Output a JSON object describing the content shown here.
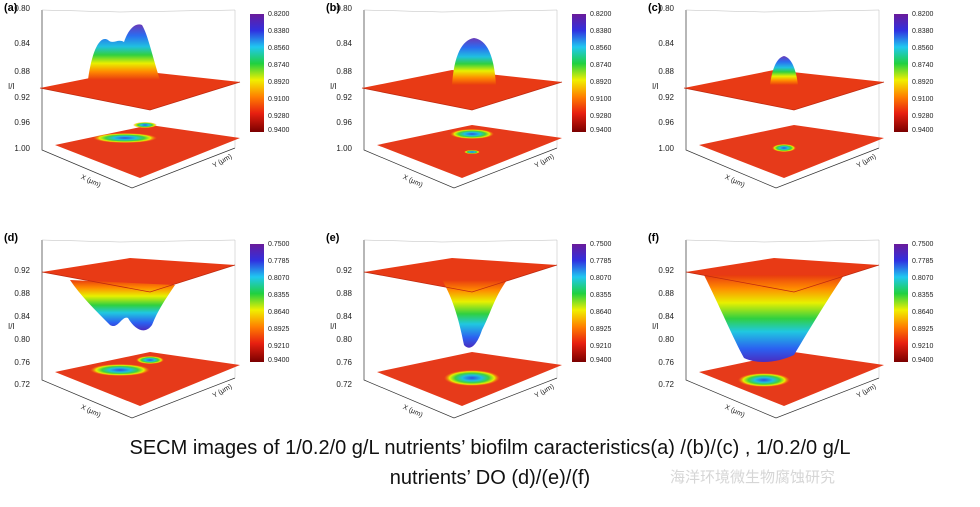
{
  "panels": [
    {
      "label": "(a)",
      "z_ticks": [
        "0.80",
        "0.84",
        "0.88",
        "0.92",
        "0.96",
        "1.00"
      ],
      "z_label": "I/I",
      "cbar": [
        "0.8200",
        "0.8380",
        "0.8560",
        "0.8740",
        "0.8920",
        "0.9100",
        "0.9280",
        "0.9400"
      ],
      "x_label": "X (μm)",
      "y_label": "Y (μm)"
    },
    {
      "label": "(b)",
      "z_ticks": [
        "0.80",
        "0.84",
        "0.88",
        "0.92",
        "0.96",
        "1.00"
      ],
      "z_label": "I/I",
      "cbar": [
        "0.8200",
        "0.8380",
        "0.8560",
        "0.8740",
        "0.8920",
        "0.9100",
        "0.9280",
        "0.9400"
      ],
      "x_label": "X (μm)",
      "y_label": "Y (μm)"
    },
    {
      "label": "(c)",
      "z_ticks": [
        "0.80",
        "0.84",
        "0.88",
        "0.92",
        "0.96",
        "1.00"
      ],
      "z_label": "I/I",
      "cbar": [
        "0.8200",
        "0.8380",
        "0.8560",
        "0.8740",
        "0.8920",
        "0.9100",
        "0.9280",
        "0.9400"
      ],
      "x_label": "X (μm)",
      "y_label": "Y (μm)"
    },
    {
      "label": "(d)",
      "z_ticks": [
        "0.92",
        "0.88",
        "0.84",
        "0.80",
        "0.76",
        "0.72"
      ],
      "z_label": "I/I",
      "cbar": [
        "0.7500",
        "0.7785",
        "0.8070",
        "0.8355",
        "0.8640",
        "0.8925",
        "0.9210",
        "0.9400"
      ],
      "x_label": "X (μm)",
      "y_label": "Y (μm)"
    },
    {
      "label": "(e)",
      "z_ticks": [
        "0.92",
        "0.88",
        "0.84",
        "0.80",
        "0.76",
        "0.72"
      ],
      "z_label": "I/I",
      "cbar": [
        "0.7500",
        "0.7785",
        "0.8070",
        "0.8355",
        "0.8640",
        "0.8925",
        "0.9210",
        "0.9400"
      ],
      "x_label": "X (μm)",
      "y_label": "Y (μm)"
    },
    {
      "label": "(f)",
      "z_ticks": [
        "0.92",
        "0.88",
        "0.84",
        "0.80",
        "0.76",
        "0.72"
      ],
      "z_label": "I/I",
      "cbar": [
        "0.7500",
        "0.7785",
        "0.8070",
        "0.8355",
        "0.8640",
        "0.8925",
        "0.9210",
        "0.9400"
      ],
      "x_label": "X (μm)",
      "y_label": "Y (μm)"
    }
  ],
  "caption": {
    "line1": "SECM images of 1/0.2/0 g/L nutrients’ biofilm caracteristics(a) /(b)/(c) , 1/0.2/0 g/L",
    "line2": "nutrients’ DO (d)/(e)/(f)"
  },
  "watermark": "海洋环境微生物腐蚀研究"
}
